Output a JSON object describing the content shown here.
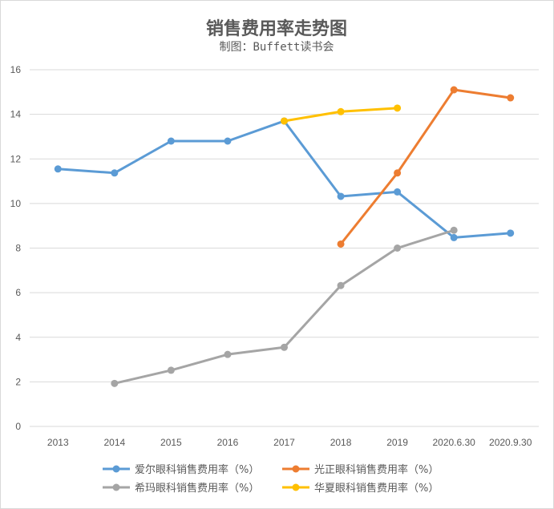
{
  "chart_data": {
    "type": "line",
    "title": "销售费用率走势图",
    "subtitle": "制图：Buffett读书会",
    "xlabel": "",
    "ylabel": "",
    "categories": [
      "2013",
      "2014",
      "2015",
      "2016",
      "2017",
      "2018",
      "2019",
      "2020.6.30",
      "2020.9.30"
    ],
    "ylim": [
      0,
      16
    ],
    "yticks": [
      "0",
      "2",
      "4",
      "6",
      "8",
      "10",
      "12",
      "14",
      "16"
    ],
    "grid": true,
    "legend_position": "bottom",
    "series": [
      {
        "name": "爱尔眼科销售费用率（%）",
        "color": "#5b9bd5",
        "values": [
          11.55,
          11.37,
          12.8,
          12.8,
          13.7,
          10.32,
          10.52,
          8.47,
          8.67
        ]
      },
      {
        "name": "光正眼科销售费用率（%）",
        "color": "#ed7d31",
        "values": [
          null,
          null,
          null,
          null,
          null,
          8.18,
          11.37,
          15.1,
          14.74
        ]
      },
      {
        "name": "希玛眼科销售费用率（%）",
        "color": "#a5a5a5",
        "values": [
          null,
          1.93,
          2.52,
          3.23,
          3.55,
          6.32,
          8.0,
          8.8,
          null
        ]
      },
      {
        "name": "华夏眼科销售费用率（%）",
        "color": "#ffc000",
        "values": [
          null,
          null,
          null,
          null,
          13.7,
          14.12,
          14.28,
          null,
          null
        ]
      }
    ]
  }
}
